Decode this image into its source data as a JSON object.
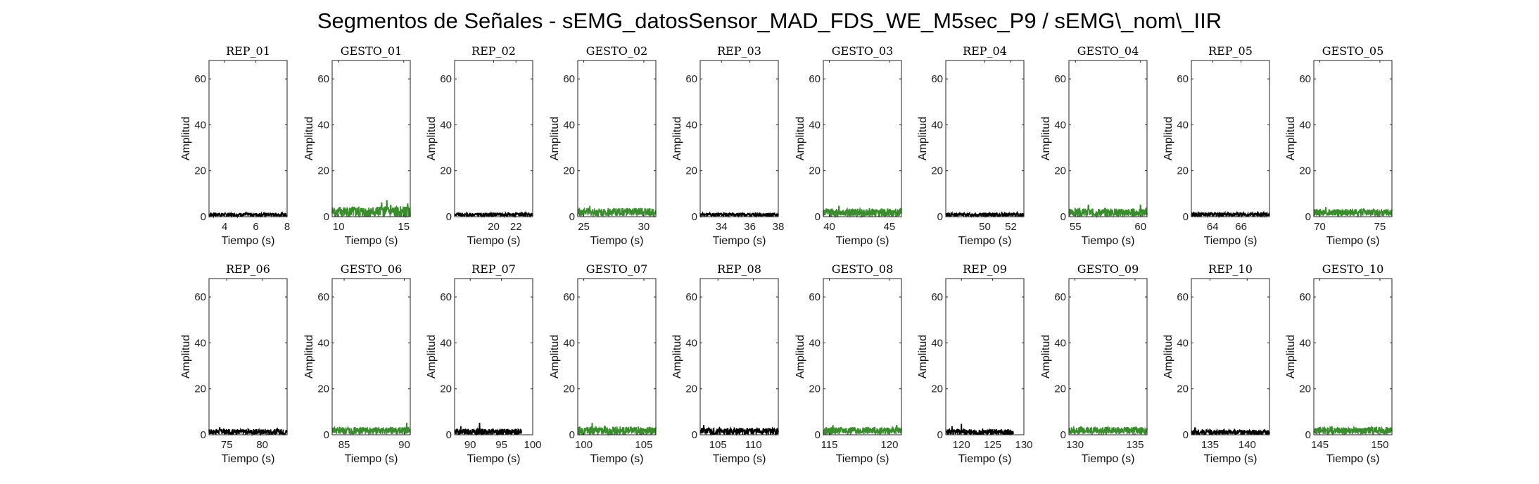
{
  "title": "Segmentos de Señales - sEMG_datosSensor_MAD_FDS_WE_M5sec_P9 / sEMG\\_nom\\_IIR",
  "colors": {
    "rep": "#000000",
    "gesto": "#3a8c2e"
  },
  "chart_data": [
    {
      "type": "line",
      "title": "REP_01",
      "xlabel": "Tiempo (s)",
      "ylabel": "Amplitud",
      "xlim": [
        3,
        8
      ],
      "ylim": [
        0,
        68
      ],
      "xticks": [
        4,
        6,
        8
      ],
      "yticks": [
        0,
        20,
        40,
        60
      ],
      "series": [
        {
          "color": "#000000",
          "noise": {
            "base": 0.9,
            "amp": 0.8,
            "peaks": []
          }
        }
      ]
    },
    {
      "type": "line",
      "title": "GESTO_01",
      "xlabel": "Tiempo (s)",
      "ylabel": "Amplitud",
      "xlim": [
        9.5,
        15.5
      ],
      "ylim": [
        0,
        68
      ],
      "xticks": [
        10,
        15
      ],
      "yticks": [
        0,
        20,
        40,
        60
      ],
      "series": [
        {
          "color": "#3a8c2e",
          "noise": {
            "base": 2,
            "amp": 2.5,
            "peaks": [
              [
                13.3,
                6
              ],
              [
                13.7,
                7
              ],
              [
                14.0,
                5
              ],
              [
                15.3,
                5.5
              ]
            ]
          }
        }
      ]
    },
    {
      "type": "line",
      "title": "REP_02",
      "xlabel": "Tiempo (s)",
      "ylabel": "Amplitud",
      "xlim": [
        16.5,
        23.5
      ],
      "ylim": [
        0,
        68
      ],
      "xticks": [
        20,
        22
      ],
      "yticks": [
        0,
        20,
        40,
        60
      ],
      "series": [
        {
          "color": "#000000",
          "noise": {
            "base": 0.9,
            "amp": 0.8,
            "peaks": []
          }
        }
      ]
    },
    {
      "type": "line",
      "title": "GESTO_02",
      "xlabel": "Tiempo (s)",
      "ylabel": "Amplitud",
      "xlim": [
        24.5,
        31
      ],
      "ylim": [
        0,
        68
      ],
      "xticks": [
        25,
        30
      ],
      "yticks": [
        0,
        20,
        40,
        60
      ],
      "series": [
        {
          "color": "#3a8c2e",
          "noise": {
            "base": 2,
            "amp": 1.8,
            "peaks": [
              [
                25.5,
                4.5
              ]
            ]
          }
        }
      ]
    },
    {
      "type": "line",
      "title": "REP_03",
      "xlabel": "Tiempo (s)",
      "ylabel": "Amplitud",
      "xlim": [
        32.5,
        38
      ],
      "ylim": [
        0,
        68
      ],
      "xticks": [
        34,
        36,
        38
      ],
      "yticks": [
        0,
        20,
        40,
        60
      ],
      "series": [
        {
          "color": "#000000",
          "noise": {
            "base": 0.9,
            "amp": 0.8,
            "peaks": []
          }
        }
      ]
    },
    {
      "type": "line",
      "title": "GESTO_03",
      "xlabel": "Tiempo (s)",
      "ylabel": "Amplitud",
      "xlim": [
        39.5,
        46
      ],
      "ylim": [
        0,
        68
      ],
      "xticks": [
        40,
        45
      ],
      "yticks": [
        0,
        20,
        40,
        60
      ],
      "series": [
        {
          "color": "#3a8c2e",
          "noise": {
            "base": 1.8,
            "amp": 1.8,
            "peaks": [
              [
                40.8,
                4.5
              ]
            ]
          }
        }
      ]
    },
    {
      "type": "line",
      "title": "REP_04",
      "xlabel": "Tiempo (s)",
      "ylabel": "Amplitud",
      "xlim": [
        47,
        53
      ],
      "ylim": [
        0,
        68
      ],
      "xticks": [
        50,
        52
      ],
      "yticks": [
        0,
        20,
        40,
        60
      ],
      "series": [
        {
          "color": "#000000",
          "noise": {
            "base": 0.9,
            "amp": 0.8,
            "peaks": []
          }
        }
      ]
    },
    {
      "type": "line",
      "title": "GESTO_04",
      "xlabel": "Tiempo (s)",
      "ylabel": "Amplitud",
      "xlim": [
        54.5,
        60.5
      ],
      "ylim": [
        0,
        68
      ],
      "xticks": [
        55,
        60
      ],
      "yticks": [
        0,
        20,
        40,
        60
      ],
      "series": [
        {
          "color": "#3a8c2e",
          "noise": {
            "base": 1.8,
            "amp": 1.8,
            "peaks": [
              [
                56.0,
                5
              ],
              [
                60.0,
                5
              ]
            ]
          }
        }
      ]
    },
    {
      "type": "line",
      "title": "REP_05",
      "xlabel": "Tiempo (s)",
      "ylabel": "Amplitud",
      "xlim": [
        62.5,
        68
      ],
      "ylim": [
        0,
        68
      ],
      "xticks": [
        64,
        66
      ],
      "yticks": [
        0,
        20,
        40,
        60
      ],
      "series": [
        {
          "color": "#000000",
          "noise": {
            "base": 1.0,
            "amp": 0.9,
            "peaks": []
          }
        }
      ]
    },
    {
      "type": "line",
      "title": "GESTO_05",
      "xlabel": "Tiempo (s)",
      "ylabel": "Amplitud",
      "xlim": [
        69.5,
        76
      ],
      "ylim": [
        0,
        68
      ],
      "xticks": [
        70,
        75
      ],
      "yticks": [
        0,
        20,
        40,
        60
      ],
      "series": [
        {
          "color": "#3a8c2e",
          "noise": {
            "base": 1.8,
            "amp": 1.6,
            "peaks": [
              [
                70.5,
                4
              ]
            ]
          }
        }
      ]
    },
    {
      "type": "line",
      "title": "REP_06",
      "xlabel": "Tiempo (s)",
      "ylabel": "Amplitud",
      "xlim": [
        72.5,
        83.5
      ],
      "ylim": [
        0,
        68
      ],
      "xticks": [
        75,
        80
      ],
      "yticks": [
        0,
        20,
        40,
        60
      ],
      "series": [
        {
          "color": "#000000",
          "noise": {
            "base": 1.3,
            "amp": 1.2,
            "peaks": [
              [
                74,
                3
              ]
            ]
          }
        }
      ]
    },
    {
      "type": "line",
      "title": "GESTO_06",
      "xlabel": "Tiempo (s)",
      "ylabel": "Amplitud",
      "xlim": [
        84,
        90.5
      ],
      "ylim": [
        0,
        68
      ],
      "xticks": [
        85,
        90
      ],
      "yticks": [
        0,
        20,
        40,
        60
      ],
      "series": [
        {
          "color": "#3a8c2e",
          "noise": {
            "base": 1.8,
            "amp": 1.6,
            "peaks": [
              [
                90.2,
                5
              ]
            ]
          }
        }
      ]
    },
    {
      "type": "line",
      "title": "REP_07",
      "xlabel": "Tiempo (s)",
      "ylabel": "Amplitud",
      "xlim": [
        87.5,
        100
      ],
      "ylim": [
        0,
        68
      ],
      "xticks": [
        90,
        95,
        100
      ],
      "yticks": [
        0,
        20,
        40,
        60
      ],
      "xdata": [
        87.5,
        98.2
      ],
      "series": [
        {
          "color": "#000000",
          "noise": {
            "base": 1.3,
            "amp": 1.3,
            "peaks": [
              [
                88.5,
                3.5
              ],
              [
                91.5,
                5
              ]
            ]
          }
        }
      ]
    },
    {
      "type": "line",
      "title": "GESTO_07",
      "xlabel": "Tiempo (s)",
      "ylabel": "Amplitud",
      "xlim": [
        99.5,
        106
      ],
      "ylim": [
        0,
        68
      ],
      "xticks": [
        100,
        105
      ],
      "yticks": [
        0,
        20,
        40,
        60
      ],
      "series": [
        {
          "color": "#3a8c2e",
          "noise": {
            "base": 1.8,
            "amp": 1.8,
            "peaks": [
              [
                100.7,
                5
              ]
            ]
          }
        }
      ]
    },
    {
      "type": "line",
      "title": "REP_08",
      "xlabel": "Tiempo (s)",
      "ylabel": "Amplitud",
      "xlim": [
        102.5,
        113.5
      ],
      "ylim": [
        0,
        68
      ],
      "xticks": [
        105,
        110
      ],
      "yticks": [
        0,
        20,
        40,
        60
      ],
      "series": [
        {
          "color": "#000000",
          "noise": {
            "base": 1.5,
            "amp": 1.5,
            "peaks": [
              [
                103,
                4
              ]
            ]
          }
        }
      ]
    },
    {
      "type": "line",
      "title": "GESTO_08",
      "xlabel": "Tiempo (s)",
      "ylabel": "Amplitud",
      "xlim": [
        114.5,
        121
      ],
      "ylim": [
        0,
        68
      ],
      "xticks": [
        115,
        120
      ],
      "yticks": [
        0,
        20,
        40,
        60
      ],
      "series": [
        {
          "color": "#3a8c2e",
          "noise": {
            "base": 1.8,
            "amp": 1.6,
            "peaks": [
              [
                115.3,
                4
              ],
              [
                120.6,
                4
              ]
            ]
          }
        }
      ]
    },
    {
      "type": "line",
      "title": "REP_09",
      "xlabel": "Tiempo (s)",
      "ylabel": "Amplitud",
      "xlim": [
        117.5,
        130
      ],
      "ylim": [
        0,
        68
      ],
      "xticks": [
        120,
        125,
        130
      ],
      "yticks": [
        0,
        20,
        40,
        60
      ],
      "xdata": [
        117.5,
        128.3
      ],
      "series": [
        {
          "color": "#000000",
          "noise": {
            "base": 1.2,
            "amp": 1.3,
            "peaks": [
              [
                118.5,
                3.5
              ],
              [
                120,
                4.5
              ]
            ]
          }
        }
      ]
    },
    {
      "type": "line",
      "title": "GESTO_09",
      "xlabel": "Tiempo (s)",
      "ylabel": "Amplitud",
      "xlim": [
        129.5,
        136
      ],
      "ylim": [
        0,
        68
      ],
      "xticks": [
        130,
        135
      ],
      "yticks": [
        0,
        20,
        40,
        60
      ],
      "series": [
        {
          "color": "#3a8c2e",
          "noise": {
            "base": 1.8,
            "amp": 1.6,
            "peaks": [
              [
                130.5,
                3.5
              ]
            ]
          }
        }
      ]
    },
    {
      "type": "line",
      "title": "REP_10",
      "xlabel": "Tiempo (s)",
      "ylabel": "Amplitud",
      "xlim": [
        132.5,
        143
      ],
      "ylim": [
        0,
        68
      ],
      "xticks": [
        135,
        140
      ],
      "yticks": [
        0,
        20,
        40,
        60
      ],
      "series": [
        {
          "color": "#000000",
          "noise": {
            "base": 1.1,
            "amp": 1.1,
            "peaks": [
              [
                133,
                3
              ]
            ]
          }
        }
      ]
    },
    {
      "type": "line",
      "title": "GESTO_10",
      "xlabel": "Tiempo (s)",
      "ylabel": "Amplitud",
      "xlim": [
        144.5,
        151
      ],
      "ylim": [
        0,
        68
      ],
      "xticks": [
        145,
        150
      ],
      "yticks": [
        0,
        20,
        40,
        60
      ],
      "series": [
        {
          "color": "#3a8c2e",
          "noise": {
            "base": 1.8,
            "amp": 1.6,
            "peaks": [
              [
                146,
                3.5
              ]
            ]
          }
        }
      ]
    }
  ]
}
